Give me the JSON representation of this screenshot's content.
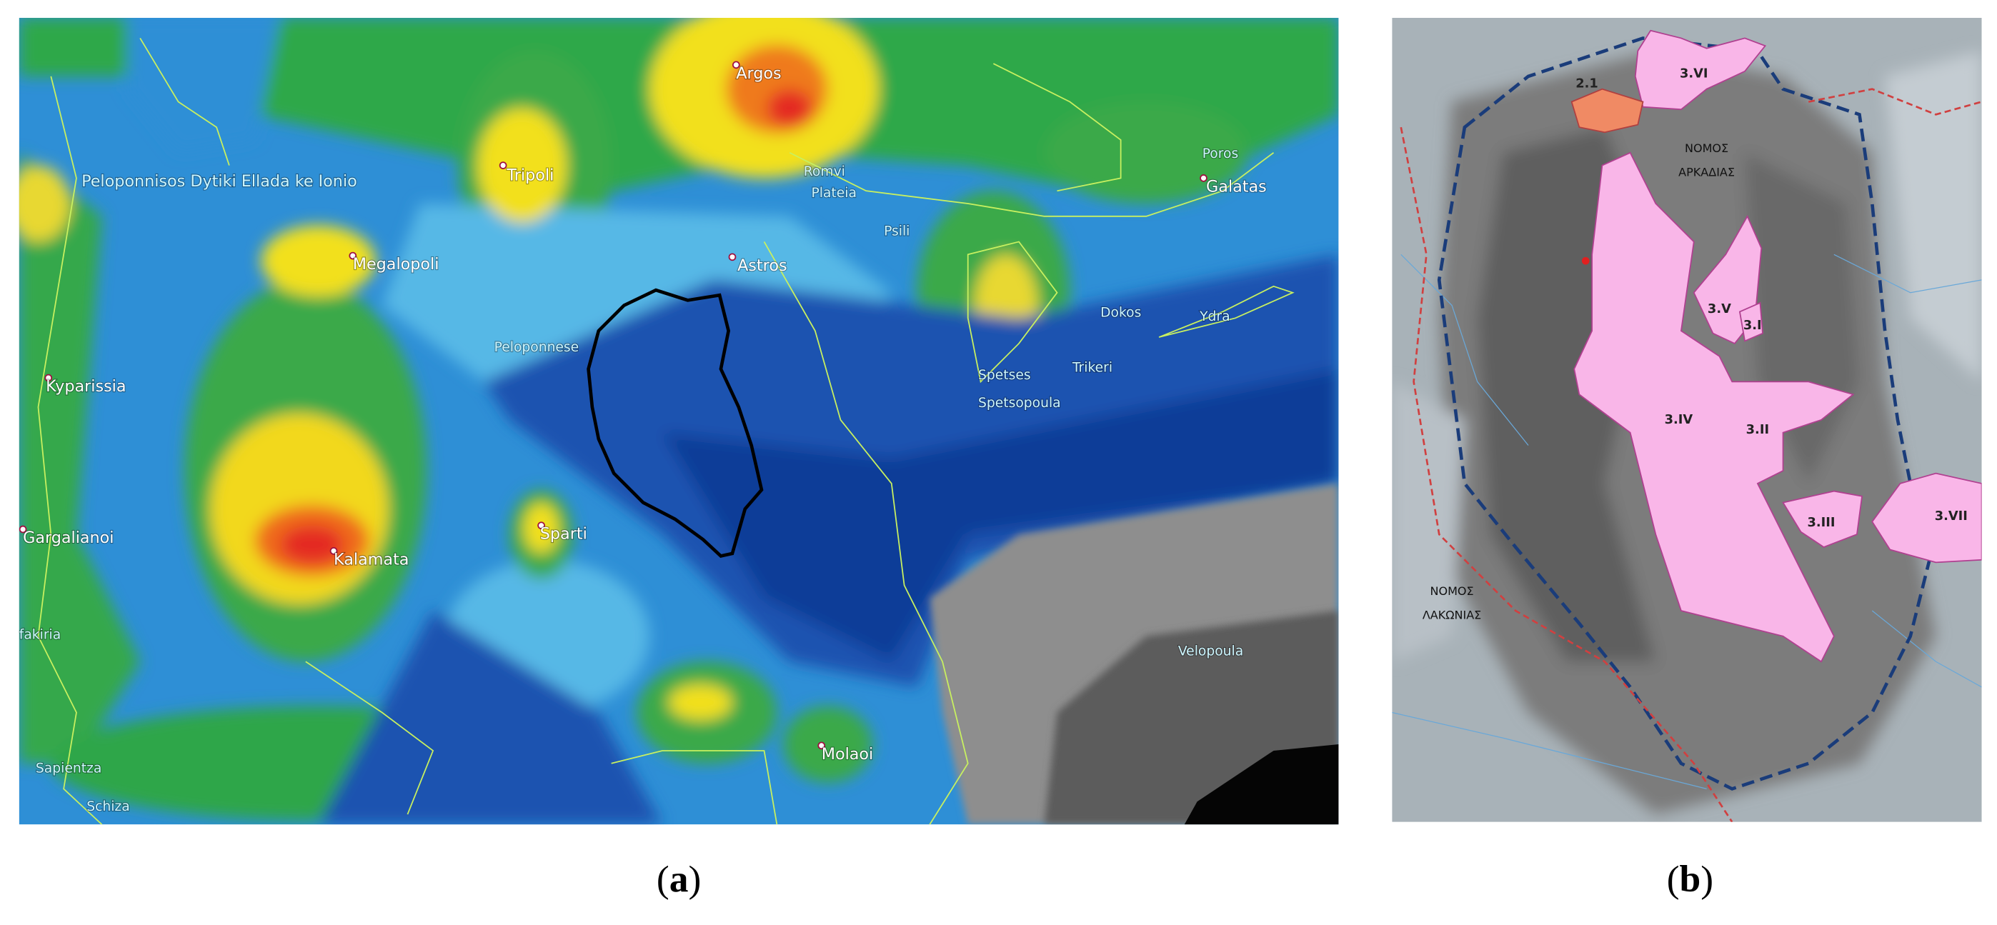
{
  "panel_a": {
    "labels": [
      "Argos",
      "Tripoli",
      "Peloponnisos Dytiki Ellada ke Ionio",
      "Megalopoli",
      "Astros",
      "Romvi",
      "Plateia",
      "Psili",
      "Poros",
      "Galatas",
      "Dokos",
      "Ydra",
      "Peloponnese",
      "Kyparissia",
      "Spetses",
      "Trikeri",
      "Spetsopoula",
      "Sparti",
      "Gargalianoi",
      "Kalamata",
      "Velopoula",
      "fakiria",
      "Molaoi",
      "Sapientza",
      "Schiza"
    ],
    "caption": "a"
  },
  "panel_b": {
    "labels": [
      "2.1",
      "3.VI",
      "ΝΟΜΟΣ",
      "ΑΡΚΑΔΙΑΣ",
      "3.V",
      "3.I",
      "3.IV",
      "3.II",
      "3.III",
      "3.VII",
      "ΝΟΜΟΣ",
      "ΛΑΚΩΝΙΑΣ"
    ],
    "caption": "b"
  }
}
